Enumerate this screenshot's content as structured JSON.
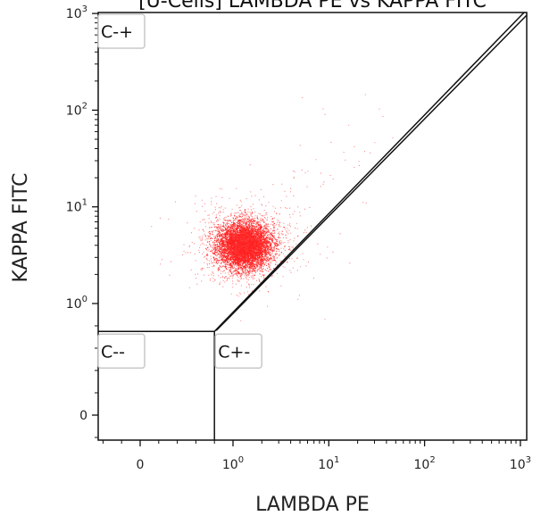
{
  "chart_data": {
    "type": "scatter",
    "title": "[U-Cells] LAMBDA PE vs KAPPA FITC",
    "xlabel": "LAMBDA PE",
    "ylabel": "KAPPA FITC",
    "x_scale": "biexponential",
    "y_scale": "biexponential",
    "x_ticks": [
      {
        "value": 0,
        "label": "0"
      },
      {
        "value": 1,
        "label": "10",
        "exp": "0"
      },
      {
        "value": 10,
        "label": "10",
        "exp": "1"
      },
      {
        "value": 100,
        "label": "10",
        "exp": "2"
      },
      {
        "value": 1000,
        "label": "10",
        "exp": "3"
      }
    ],
    "y_ticks": [
      {
        "value": 0,
        "label": "0"
      },
      {
        "value": 1,
        "label": "10",
        "exp": "0"
      },
      {
        "value": 10,
        "label": "10",
        "exp": "1"
      },
      {
        "value": 100,
        "label": "10",
        "exp": "2"
      },
      {
        "value": 1000,
        "label": "10",
        "exp": "3"
      }
    ],
    "population": {
      "color": "#ff0000",
      "center_lambda": 1.3,
      "center_kappa": 4.0,
      "approx_events": 20000
    },
    "gates": [
      {
        "label": "C-+",
        "position": "top-left"
      },
      {
        "label": "C--",
        "position": "bottom-left"
      },
      {
        "label": "C+-",
        "position": "bottom-right"
      }
    ],
    "gate_vertex": {
      "lambda": 0.8,
      "kappa": 0.75
    },
    "grid": false,
    "legend": "none"
  }
}
